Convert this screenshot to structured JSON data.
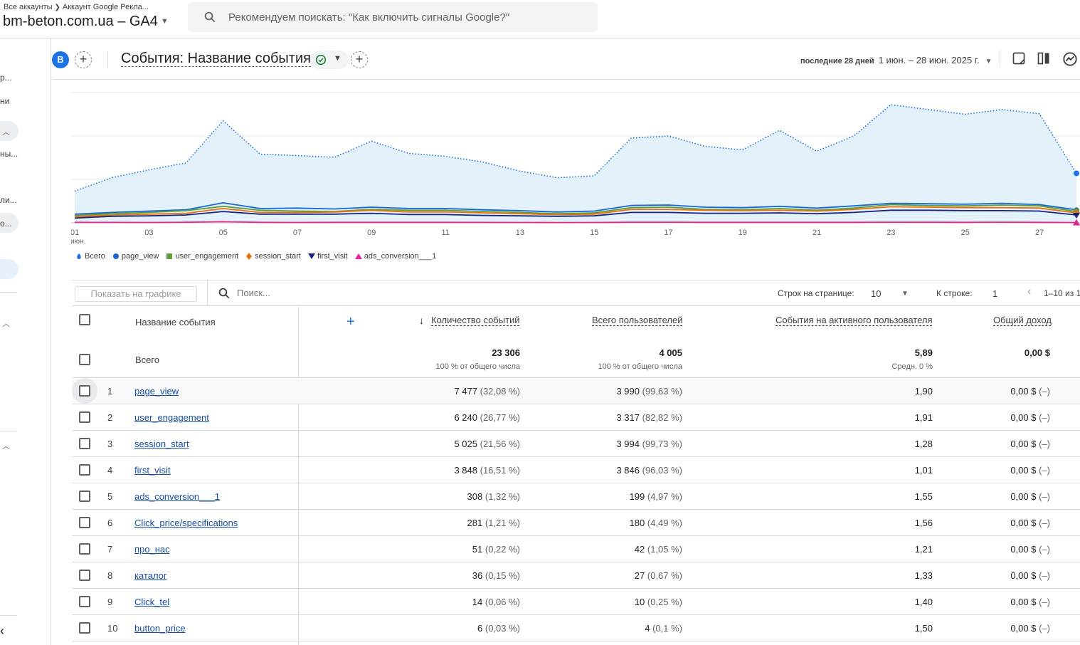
{
  "header": {
    "crumb_all": "Все аккаунты",
    "crumb_account": "Аккаунт Google Рекла...",
    "property": "bm-beton.com.ua – GA4",
    "search_placeholder": "Рекомендуем поискать: \"Как включить сигналы Google?\""
  },
  "leftnav": {
    "labels": [
      "р...",
      "ни",
      "ны...",
      "ли...",
      "о..."
    ]
  },
  "report": {
    "avatar_letter": "B",
    "title": "События: Название события",
    "date_label": "последние 28 дней",
    "date_range": "1 июн. – 28 июн. 2025 г."
  },
  "chart_data": {
    "type": "line",
    "x": [
      "01",
      "02",
      "03",
      "04",
      "05",
      "06",
      "07",
      "08",
      "09",
      "10",
      "11",
      "12",
      "13",
      "14",
      "15",
      "16",
      "17",
      "18",
      "19",
      "20",
      "21",
      "22",
      "23",
      "24",
      "25",
      "26",
      "27",
      "28"
    ],
    "x_tick_labels": [
      "01",
      "03",
      "05",
      "07",
      "09",
      "11",
      "13",
      "15",
      "17",
      "19",
      "21",
      "23",
      "25",
      "27"
    ],
    "x_tick_sublabel": "июн.",
    "series": [
      {
        "name": "Всего",
        "color": "#1a73e8",
        "style": "dotted-area",
        "values": [
          730,
          1040,
          1220,
          1380,
          2350,
          1580,
          1550,
          1510,
          1880,
          1600,
          1530,
          1400,
          1190,
          1040,
          1080,
          1950,
          2000,
          1760,
          1680,
          2130,
          1650,
          2000,
          2720,
          2610,
          2500,
          2610,
          2510,
          1140
        ]
      },
      {
        "name": "page_view",
        "color": "#1967d2",
        "values": [
          200,
          240,
          270,
          300,
          460,
          330,
          340,
          320,
          360,
          330,
          330,
          300,
          280,
          250,
          270,
          400,
          410,
          360,
          350,
          380,
          340,
          390,
          450,
          440,
          430,
          450,
          420,
          300
        ]
      },
      {
        "name": "user_engagement",
        "color": "#5f9e3e",
        "values": [
          170,
          210,
          240,
          280,
          380,
          290,
          270,
          260,
          310,
          290,
          290,
          260,
          240,
          210,
          230,
          350,
          360,
          310,
          300,
          330,
          290,
          340,
          420,
          400,
          390,
          410,
          390,
          260
        ]
      },
      {
        "name": "session_start",
        "color": "#e8710a",
        "values": [
          140,
          180,
          200,
          220,
          330,
          240,
          240,
          250,
          290,
          250,
          250,
          230,
          210,
          190,
          200,
          310,
          310,
          290,
          280,
          290,
          270,
          310,
          370,
          360,
          350,
          350,
          340,
          230
        ]
      },
      {
        "name": "first_visit",
        "color": "#1a237e",
        "values": [
          110,
          150,
          160,
          180,
          260,
          200,
          200,
          200,
          220,
          190,
          190,
          170,
          160,
          150,
          160,
          240,
          240,
          220,
          220,
          230,
          210,
          240,
          290,
          290,
          280,
          280,
          270,
          180
        ]
      },
      {
        "name": "ads_conversion___1",
        "color": "#e52592",
        "values": [
          12,
          10,
          9,
          13,
          25,
          12,
          9,
          11,
          12,
          11,
          11,
          10,
          8,
          6,
          9,
          13,
          14,
          12,
          11,
          12,
          11,
          12,
          14,
          13,
          12,
          14,
          12,
          6
        ]
      }
    ],
    "grid": true,
    "legend_position": "bottom-left"
  },
  "legend": [
    {
      "label": "Всего",
      "color": "#1a73e8",
      "shape": "drop"
    },
    {
      "label": "page_view",
      "color": "#1967d2",
      "shape": "circle"
    },
    {
      "label": "user_engagement",
      "color": "#5f9e3e",
      "shape": "square"
    },
    {
      "label": "session_start",
      "color": "#e8710a",
      "shape": "diamond"
    },
    {
      "label": "first_visit",
      "color": "#1a237e",
      "shape": "triangle-down"
    },
    {
      "label": "ads_conversion___1",
      "color": "#e52592",
      "shape": "triangle-up"
    }
  ],
  "toolbar": {
    "show_on_chart": "Показать на графике",
    "search_placeholder": "Поиск...",
    "rows_per_page_label": "Строк на странице:",
    "rows_per_page": "10",
    "goto_row_label": "К строке:",
    "goto_row": "1",
    "range": "1–10 из 1"
  },
  "table": {
    "dim_header": "Название события",
    "columns": [
      "Количество событий",
      "Всего пользователей",
      "События на активного пользователя",
      "Общий доход"
    ],
    "totals": {
      "label": "Всего",
      "events": "23 306",
      "events_sub": "100 % от общего числа",
      "users": "4 005",
      "users_sub": "100 % от общего числа",
      "per_user": "5,89",
      "per_user_sub": "Средн. 0 %",
      "revenue": "0,00 $"
    },
    "rows": [
      {
        "i": "1",
        "name": "page_view",
        "events": "7 477",
        "events_pct": "(32,08 %)",
        "users": "3 990",
        "users_pct": "(99,63 %)",
        "per_user": "1,90",
        "revenue": "0,00 $",
        "revenue_pct": "(–)"
      },
      {
        "i": "2",
        "name": "user_engagement",
        "events": "6 240",
        "events_pct": "(26,77 %)",
        "users": "3 317",
        "users_pct": "(82,82 %)",
        "per_user": "1,91",
        "revenue": "0,00 $",
        "revenue_pct": "(–)"
      },
      {
        "i": "3",
        "name": "session_start",
        "events": "5 025",
        "events_pct": "(21,56 %)",
        "users": "3 994",
        "users_pct": "(99,73 %)",
        "per_user": "1,28",
        "revenue": "0,00 $",
        "revenue_pct": "(–)"
      },
      {
        "i": "4",
        "name": "first_visit",
        "events": "3 848",
        "events_pct": "(16,51 %)",
        "users": "3 846",
        "users_pct": "(96,03 %)",
        "per_user": "1,01",
        "revenue": "0,00 $",
        "revenue_pct": "(–)"
      },
      {
        "i": "5",
        "name": "ads_conversion___1",
        "events": "308",
        "events_pct": "(1,32 %)",
        "users": "199",
        "users_pct": "(4,97 %)",
        "per_user": "1,55",
        "revenue": "0,00 $",
        "revenue_pct": "(–)"
      },
      {
        "i": "6",
        "name": "Click_price/specifications",
        "events": "281",
        "events_pct": "(1,21 %)",
        "users": "180",
        "users_pct": "(4,49 %)",
        "per_user": "1,56",
        "revenue": "0,00 $",
        "revenue_pct": "(–)"
      },
      {
        "i": "7",
        "name": "про_нас",
        "events": "51",
        "events_pct": "(0,22 %)",
        "users": "42",
        "users_pct": "(1,05 %)",
        "per_user": "1,21",
        "revenue": "0,00 $",
        "revenue_pct": "(–)"
      },
      {
        "i": "8",
        "name": "каталог",
        "events": "36",
        "events_pct": "(0,15 %)",
        "users": "27",
        "users_pct": "(0,67 %)",
        "per_user": "1,33",
        "revenue": "0,00 $",
        "revenue_pct": "(–)"
      },
      {
        "i": "9",
        "name": "Click_tel",
        "events": "14",
        "events_pct": "(0,06 %)",
        "users": "10",
        "users_pct": "(0,25 %)",
        "per_user": "1,40",
        "revenue": "0,00 $",
        "revenue_pct": "(–)"
      },
      {
        "i": "10",
        "name": "button_price",
        "events": "6",
        "events_pct": "(0,03 %)",
        "users": "4",
        "users_pct": "(0,1 %)",
        "per_user": "1,50",
        "revenue": "0,00 $",
        "revenue_pct": "(–)"
      }
    ]
  }
}
